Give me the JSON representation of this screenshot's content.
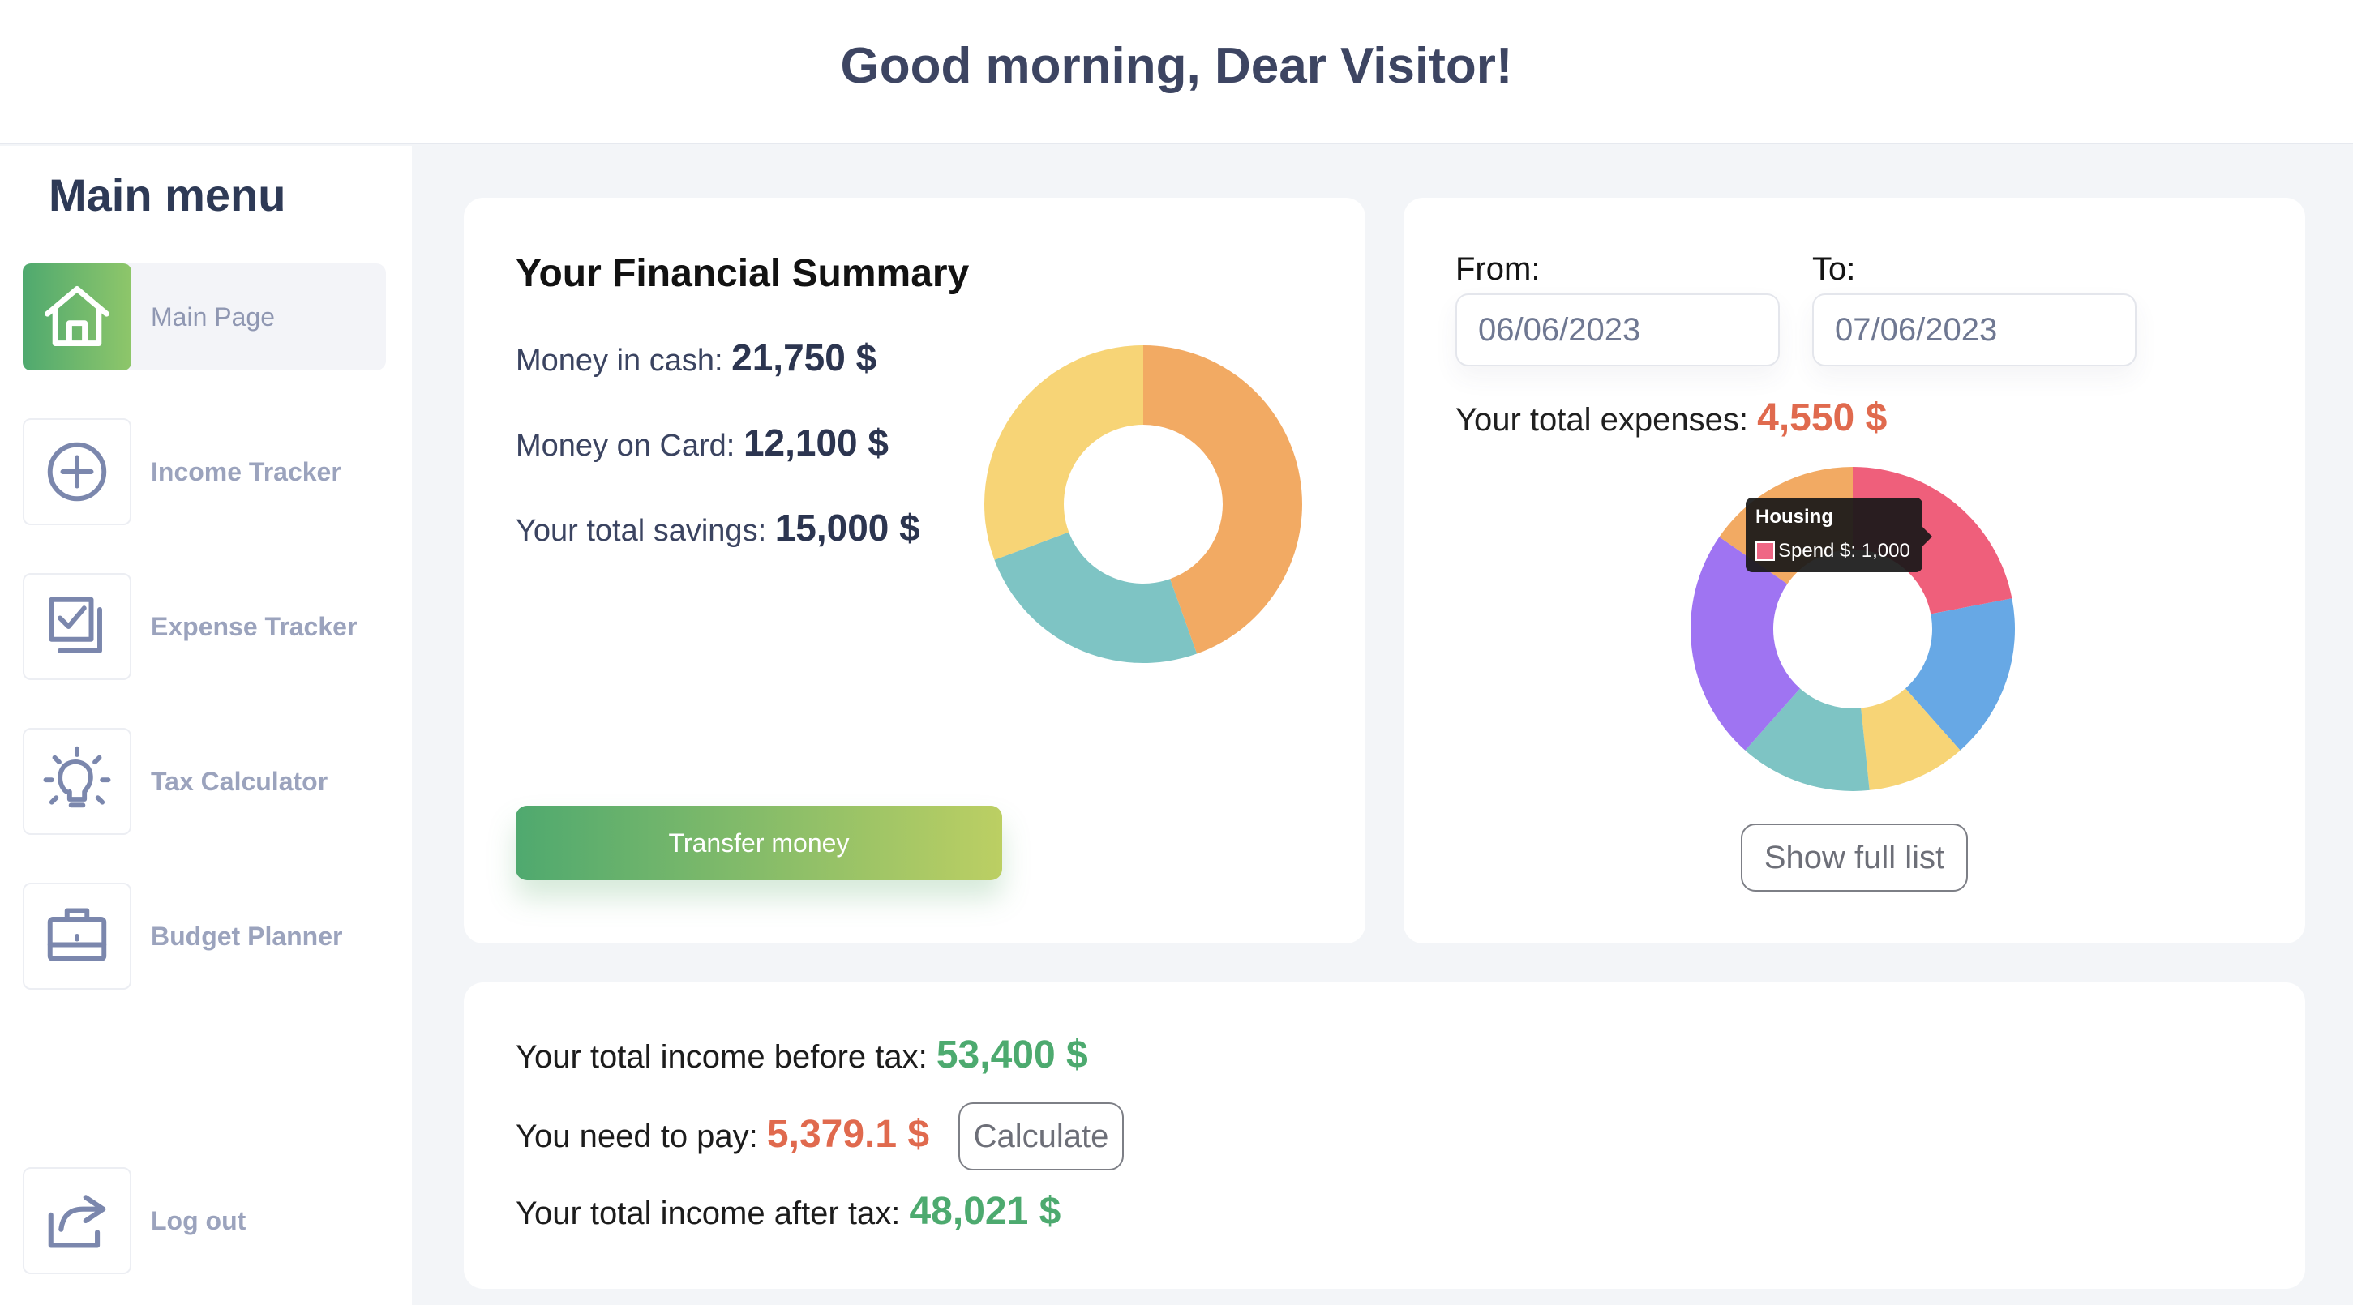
{
  "header": {
    "greeting": "Good morning, Dear Visitor!"
  },
  "sidebar": {
    "title": "Main menu",
    "items": [
      {
        "label": "Main Page",
        "icon": "home-icon",
        "active": true
      },
      {
        "label": "Income Tracker",
        "icon": "plus-circle-icon"
      },
      {
        "label": "Expense Tracker",
        "icon": "checklist-icon"
      },
      {
        "label": "Tax Calculator",
        "icon": "lightbulb-icon"
      },
      {
        "label": "Budget Planner",
        "icon": "briefcase-icon"
      }
    ],
    "logout": {
      "label": "Log out",
      "icon": "share-icon"
    }
  },
  "summary": {
    "title": "Your Financial Summary",
    "cash_label": "Money in cash:",
    "cash_value": "21,750 $",
    "card_label": "Money on Card:",
    "card_value": "12,100 $",
    "savings_label": "Your total savings:",
    "savings_value": "15,000 $",
    "transfer_label": "Transfer money",
    "chart_colors": [
      "#f2aa63",
      "#7ec4c4",
      "#f7d476"
    ]
  },
  "expenses": {
    "from_label": "From:",
    "from_value": "06/06/2023",
    "to_label": "To:",
    "to_value": "07/06/2023",
    "total_label": "Your total expenses:",
    "total_value": "4,550 $",
    "tooltip": {
      "title": "Housing",
      "text": "Spend $: 1,000"
    },
    "show_full_label": "Show full list",
    "chart_colors": [
      "#ef5f7b",
      "#67a8e5",
      "#f7d476",
      "#7ec4c4",
      "#9f74f2",
      "#f2aa63"
    ]
  },
  "tax": {
    "before_label": "Your total income before tax:",
    "before_value": "53,400 $",
    "pay_label": "You need to pay:",
    "pay_value": "5,379.1 $",
    "calculate_label": "Calculate",
    "after_label": "Your total income after tax:",
    "after_value": "48,021 $"
  },
  "chart_data": [
    {
      "type": "pie",
      "categories": [
        "Money in cash",
        "Money on Card",
        "Your total savings"
      ],
      "values": [
        21750,
        12100,
        15000
      ],
      "donut": true
    },
    {
      "type": "pie",
      "categories": [
        "Housing",
        "",
        "",
        "",
        "",
        ""
      ],
      "values": [
        1000,
        750,
        450,
        600,
        1050,
        700
      ],
      "donut": true
    }
  ]
}
